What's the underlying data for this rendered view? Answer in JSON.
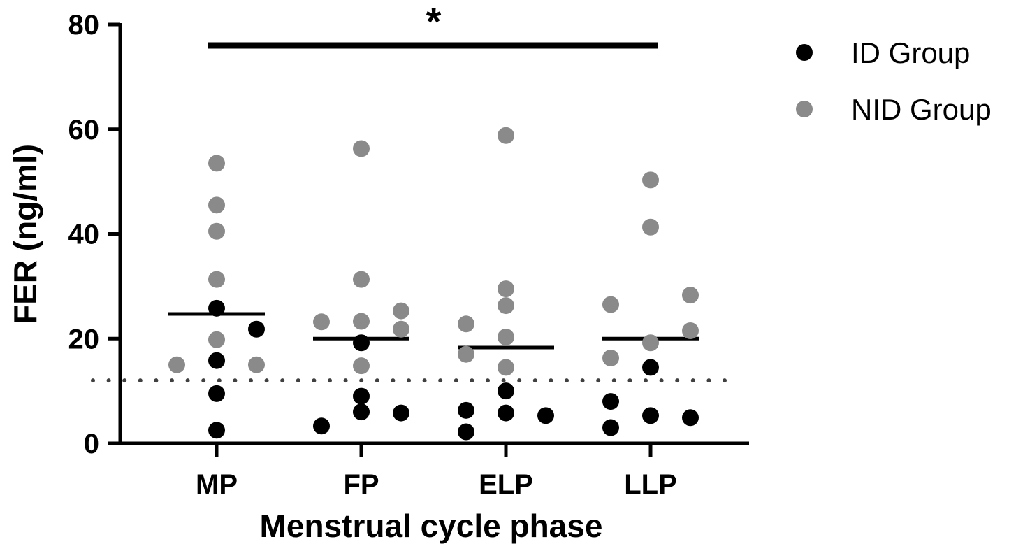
{
  "chart_data": {
    "type": "scatter",
    "title": "",
    "xlabel": "Menstrual cycle phase",
    "ylabel": "FER (ng/ml)",
    "ylim": [
      0,
      80
    ],
    "yticks": [
      0,
      20,
      40,
      60,
      80
    ],
    "categories": [
      "MP",
      "FP",
      "ELP",
      "LLP"
    ],
    "reference_line": {
      "y": 12,
      "style": "dotted"
    },
    "significance": {
      "from": "MP",
      "to": "LLP",
      "y": 76,
      "label": "*"
    },
    "legend": {
      "position": "top-right"
    },
    "series": [
      {
        "name": "ID Group",
        "color": "#000000",
        "points": [
          {
            "category": "MP",
            "offset": 0,
            "value": 25.8
          },
          {
            "category": "MP",
            "offset": 0,
            "value": 15.8
          },
          {
            "category": "MP",
            "offset": 0,
            "value": 9.5
          },
          {
            "category": "MP",
            "offset": 0,
            "value": 2.5
          },
          {
            "category": "MP",
            "offset": 1,
            "value": 21.8
          },
          {
            "category": "FP",
            "offset": 0,
            "value": 19.2
          },
          {
            "category": "FP",
            "offset": 0,
            "value": 9.0
          },
          {
            "category": "FP",
            "offset": 0,
            "value": 6.0
          },
          {
            "category": "FP",
            "offset": -1,
            "value": 3.3
          },
          {
            "category": "FP",
            "offset": 1,
            "value": 5.8
          },
          {
            "category": "ELP",
            "offset": 0,
            "value": 10.0
          },
          {
            "category": "ELP",
            "offset": 0,
            "value": 5.8
          },
          {
            "category": "ELP",
            "offset": -1,
            "value": 6.3
          },
          {
            "category": "ELP",
            "offset": -1,
            "value": 2.2
          },
          {
            "category": "ELP",
            "offset": 1,
            "value": 5.3
          },
          {
            "category": "LLP",
            "offset": 0,
            "value": 14.5
          },
          {
            "category": "LLP",
            "offset": 0,
            "value": 5.3
          },
          {
            "category": "LLP",
            "offset": -1,
            "value": 8.0
          },
          {
            "category": "LLP",
            "offset": -1,
            "value": 3.0
          },
          {
            "category": "LLP",
            "offset": 1,
            "value": 4.9
          }
        ]
      },
      {
        "name": "NID Group",
        "color": "#8a8a8a",
        "points": [
          {
            "category": "MP",
            "offset": 0,
            "value": 53.5
          },
          {
            "category": "MP",
            "offset": 0,
            "value": 45.5
          },
          {
            "category": "MP",
            "offset": 0,
            "value": 40.5
          },
          {
            "category": "MP",
            "offset": 0,
            "value": 31.3
          },
          {
            "category": "MP",
            "offset": 0,
            "value": 19.8
          },
          {
            "category": "MP",
            "offset": -1,
            "value": 15.0
          },
          {
            "category": "MP",
            "offset": 1,
            "value": 15.0
          },
          {
            "category": "FP",
            "offset": 0,
            "value": 56.3
          },
          {
            "category": "FP",
            "offset": 0,
            "value": 31.3
          },
          {
            "category": "FP",
            "offset": 0,
            "value": 23.3
          },
          {
            "category": "FP",
            "offset": 0,
            "value": 14.8
          },
          {
            "category": "FP",
            "offset": -1,
            "value": 23.2
          },
          {
            "category": "FP",
            "offset": 1,
            "value": 25.3
          },
          {
            "category": "FP",
            "offset": 1,
            "value": 21.8
          },
          {
            "category": "ELP",
            "offset": 0,
            "value": 58.8
          },
          {
            "category": "ELP",
            "offset": 0,
            "value": 29.5
          },
          {
            "category": "ELP",
            "offset": 0,
            "value": 26.3
          },
          {
            "category": "ELP",
            "offset": 0,
            "value": 20.3
          },
          {
            "category": "ELP",
            "offset": 0,
            "value": 14.5
          },
          {
            "category": "ELP",
            "offset": -1,
            "value": 22.8
          },
          {
            "category": "ELP",
            "offset": -1,
            "value": 17.0
          },
          {
            "category": "LLP",
            "offset": 0,
            "value": 50.3
          },
          {
            "category": "LLP",
            "offset": 0,
            "value": 41.3
          },
          {
            "category": "LLP",
            "offset": 0,
            "value": 19.2
          },
          {
            "category": "LLP",
            "offset": -1,
            "value": 26.5
          },
          {
            "category": "LLP",
            "offset": -1,
            "value": 16.3
          },
          {
            "category": "LLP",
            "offset": 1,
            "value": 28.3
          },
          {
            "category": "LLP",
            "offset": 1,
            "value": 21.5
          }
        ]
      }
    ],
    "medians": [
      {
        "category": "MP",
        "value": 24.7
      },
      {
        "category": "FP",
        "value": 20.0
      },
      {
        "category": "ELP",
        "value": 18.3
      },
      {
        "category": "LLP",
        "value": 20.0
      }
    ]
  }
}
